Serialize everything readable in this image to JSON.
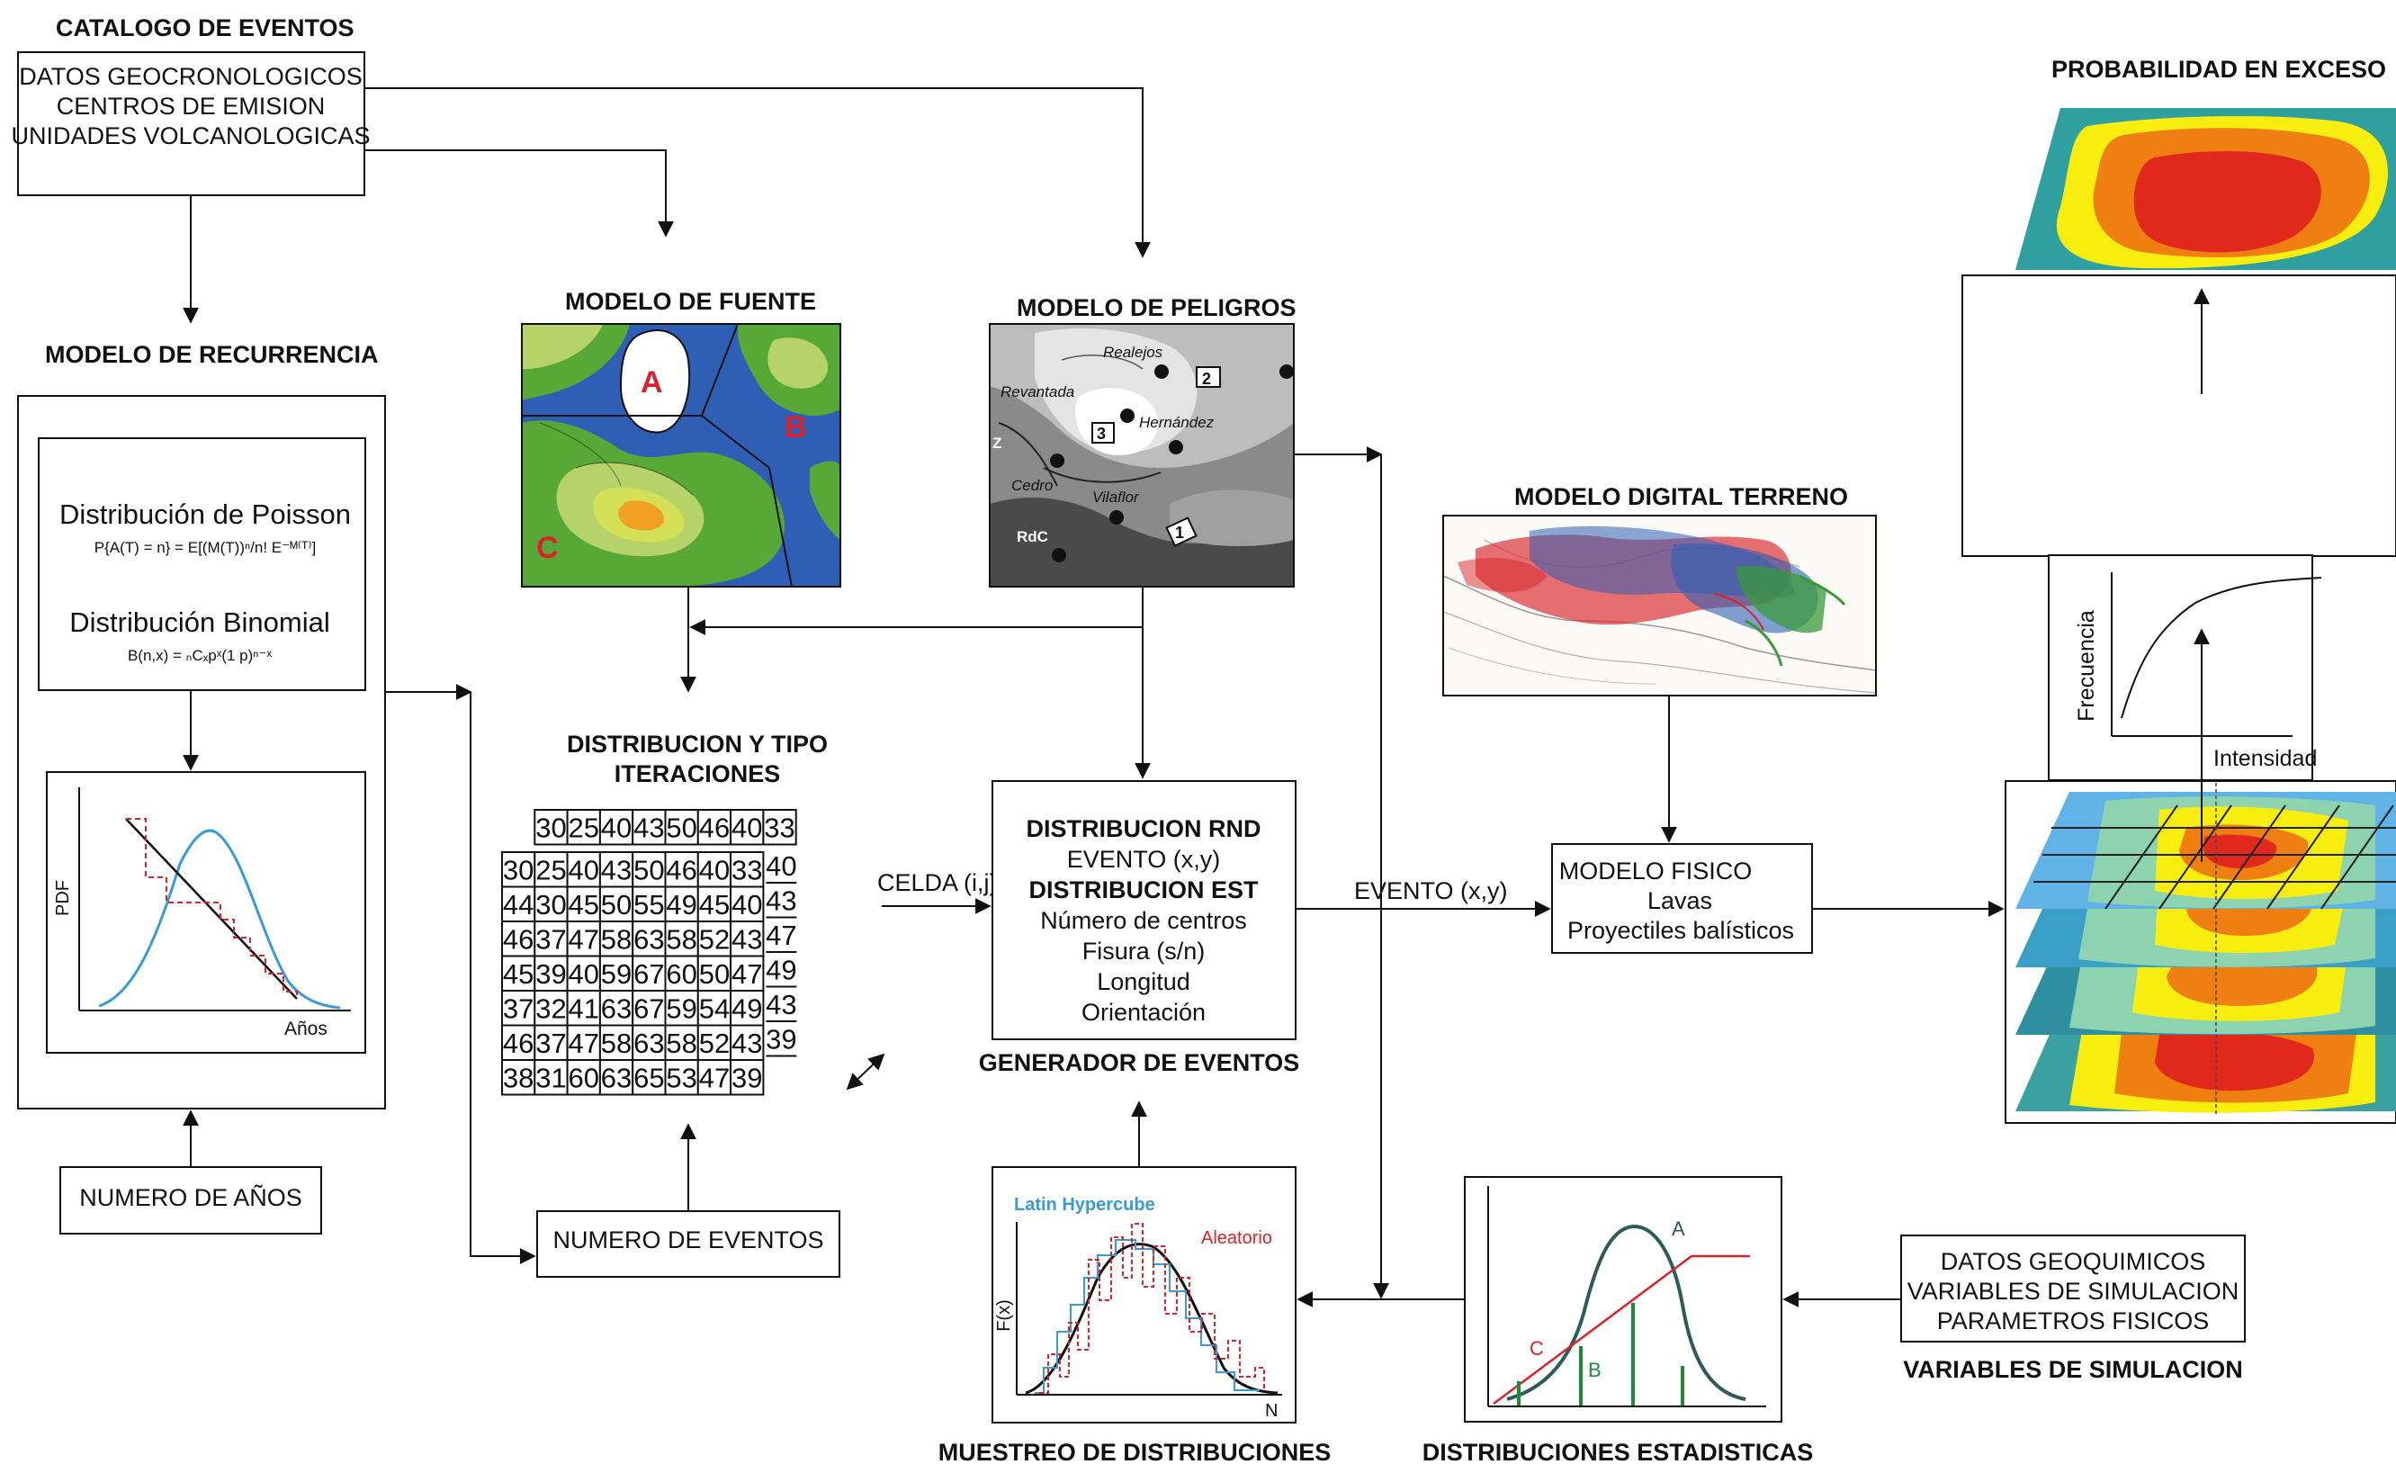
{
  "catalog": {
    "title": "CATALOGO DE EVENTOS",
    "lines": [
      "DATOS GEOCRONOLOGICOS",
      "CENTROS DE EMISION",
      "UNIDADES VOLCANOLOGICAS"
    ]
  },
  "recurrence": {
    "title": "MODELO DE RECURRENCIA",
    "poisson_title": "Distribución de Poisson",
    "poisson_formula": "P{A(T) = n} = E[(M(T))ⁿ/n! E⁻ᴹ⁽ᵀ⁾]",
    "binomial_title": "Distribución Binomial",
    "binomial_formula": "B(n,x) = ₙCₓpˣ(1 p)ⁿ⁻ˣ",
    "pdf_label": "PDF",
    "years_label": "Años"
  },
  "years_box": "NUMERO DE AÑOS",
  "events_box": "NUMERO DE EVENTOS",
  "source_model": {
    "title": "MODELO DE FUENTE",
    "zones": [
      "A",
      "B",
      "C"
    ]
  },
  "hazard_model": {
    "title": "MODELO DE PELIGROS",
    "places": [
      "Realejos",
      "Revantada",
      "Hernández",
      "Cedro",
      "Vilaflor",
      "RdC",
      "Z"
    ],
    "markers": [
      "1",
      "2",
      "3"
    ]
  },
  "distribution": {
    "title_line1": "DISTRIBUCION Y TIPO",
    "title_line2": "ITERACIONES",
    "top_row": [
      "30",
      "25",
      "40",
      "43",
      "50",
      "46",
      "40",
      "33"
    ],
    "rows": [
      [
        "30",
        "25",
        "40",
        "43",
        "50",
        "46",
        "40",
        "33"
      ],
      [
        "44",
        "30",
        "45",
        "50",
        "55",
        "49",
        "45",
        "40"
      ],
      [
        "46",
        "37",
        "47",
        "58",
        "63",
        "58",
        "52",
        "43"
      ],
      [
        "45",
        "39",
        "40",
        "59",
        "67",
        "60",
        "50",
        "47"
      ],
      [
        "37",
        "32",
        "41",
        "63",
        "67",
        "59",
        "54",
        "49"
      ],
      [
        "46",
        "37",
        "47",
        "58",
        "63",
        "58",
        "52",
        "43"
      ],
      [
        "38",
        "31",
        "60",
        "63",
        "65",
        "53",
        "47",
        "39"
      ]
    ],
    "right_col": [
      "40",
      "43",
      "47",
      "49",
      "43",
      "39"
    ],
    "cell_label": "CELDA (i,j)"
  },
  "generator": {
    "lines": [
      {
        "text": "DISTRIBUCION RND",
        "bold": true
      },
      {
        "text": "EVENTO (x,y)",
        "bold": false
      },
      {
        "text": "DISTRIBUCION EST",
        "bold": true
      },
      {
        "text": "Número de centros",
        "bold": false
      },
      {
        "text": "Fisura (s/n)",
        "bold": false
      },
      {
        "text": "Longitud",
        "bold": false
      },
      {
        "text": "Orientación",
        "bold": false
      }
    ],
    "caption": "GENERADOR DE EVENTOS",
    "event_label": "EVENTO (x,y)"
  },
  "dem": {
    "title": "MODELO DIGITAL TERRENO"
  },
  "physical": {
    "lines": [
      "MODELO FISICO",
      "Lavas",
      "Proyectiles balísticos"
    ]
  },
  "exceedance": {
    "title": "PROBABILIDAD EN EXCESO",
    "freq_label": "Frecuencia",
    "intensity_label": "Intensidad"
  },
  "sampling": {
    "caption": "MUESTREO DE DISTRIBUCIONES",
    "legend_lh": "Latin Hypercube",
    "legend_random": "Aleatorio",
    "y_label": "F(x)",
    "x_label": "N"
  },
  "stats": {
    "caption": "DISTRIBUCIONES ESTADISTICAS",
    "labels": [
      "A",
      "B",
      "C"
    ]
  },
  "simvars": {
    "lines": [
      "DATOS GEOQUIMICOS",
      "VARIABLES DE SIMULACION",
      "PARAMETROS FISICOS"
    ],
    "caption": "VARIABLES DE SIMULACION"
  },
  "colors": {
    "map_blue": "#2f5fb5",
    "map_green": "#58a838",
    "contour_red": "#e0281c",
    "contour_orange": "#f07f12",
    "contour_yellow": "#f7ee10",
    "contour_teal": "#2f9f9f",
    "curve_blue": "#3a9ad8",
    "random_red": "#d8232a"
  }
}
